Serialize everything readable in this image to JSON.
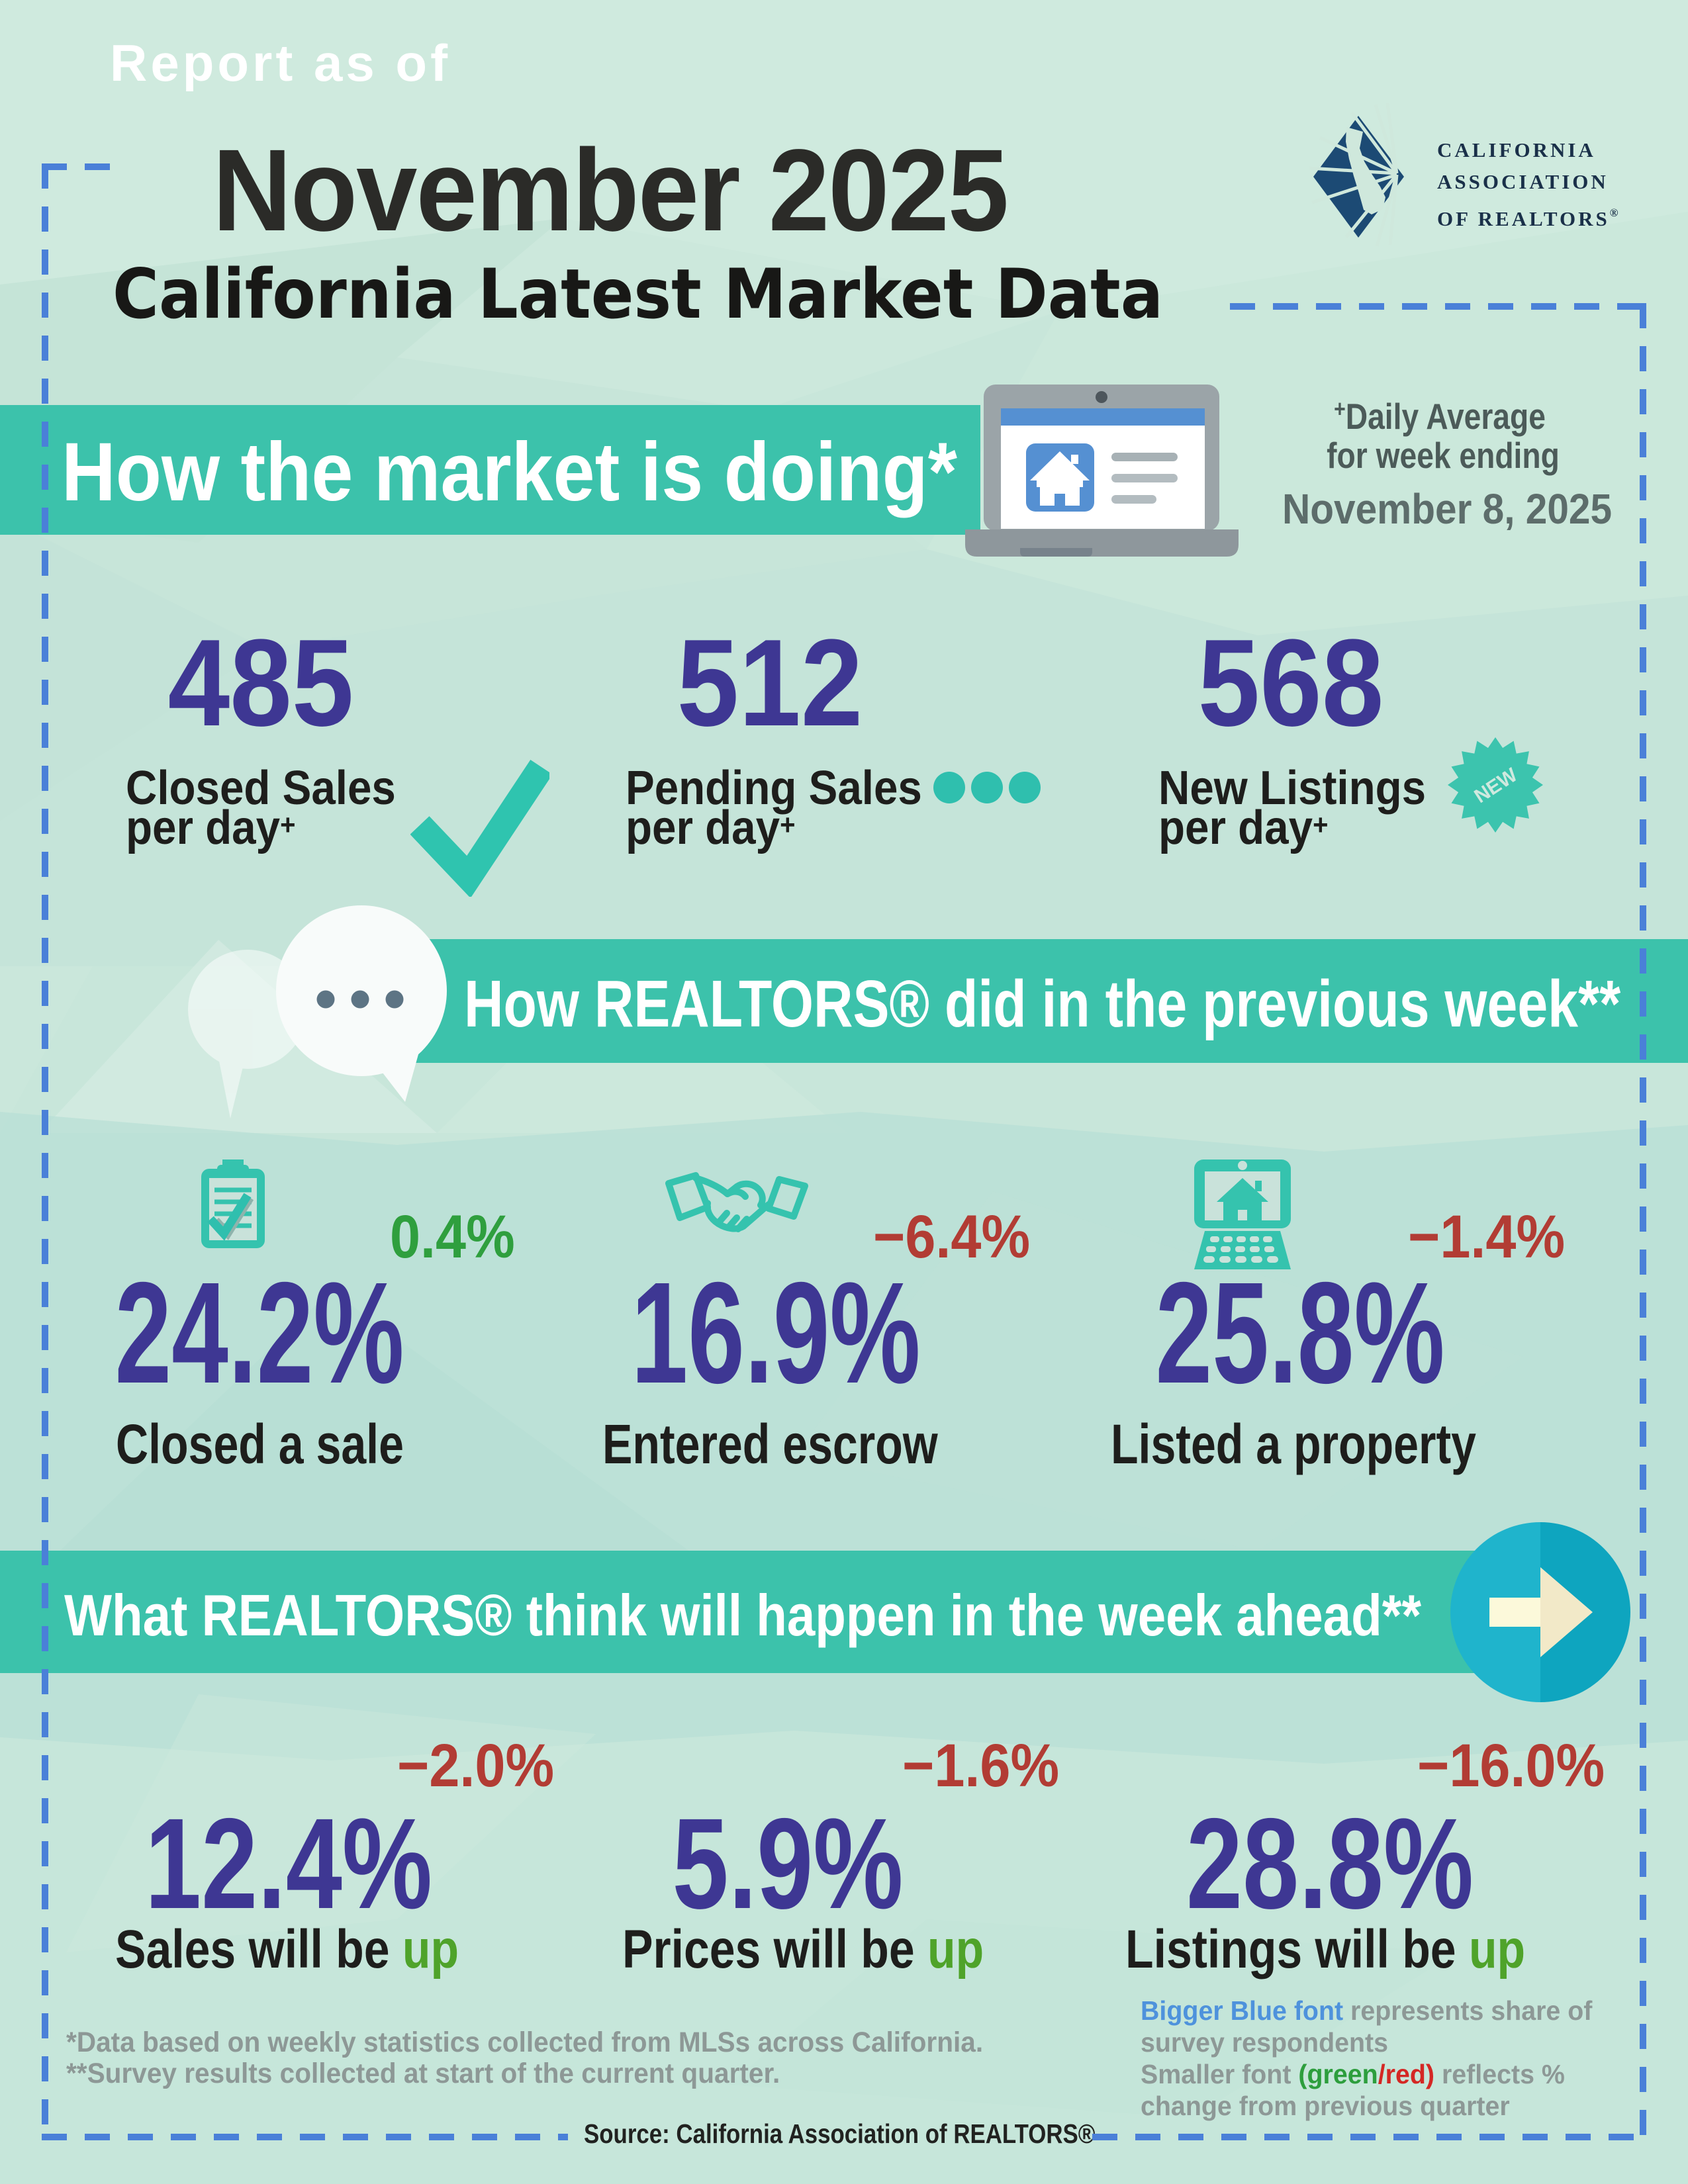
{
  "header": {
    "report_as_of": "Report as of",
    "month": "November 2025",
    "title": "California Latest Market Data"
  },
  "logo": {
    "line1": "CALIFORNIA",
    "line2": "ASSOCIATION",
    "line3": "OF REALTORS",
    "registered": "®"
  },
  "section_market": {
    "heading": "How the market is doing*",
    "note_plus": "+",
    "note_line1": "Daily Average",
    "note_line2": "for week ending",
    "note_date": "November 8, 2025",
    "stats": [
      {
        "value": "485",
        "label_line1": "Closed Sales",
        "label_line2": "per day",
        "label_sup": "+"
      },
      {
        "value": "512",
        "label_line1": "Pending Sales",
        "label_line2": "per day",
        "label_sup": "+"
      },
      {
        "value": "568",
        "label_line1": "New Listings",
        "label_line2": "per day",
        "label_sup": "+"
      }
    ],
    "new_badge": "NEW"
  },
  "section_previous": {
    "heading": "How REALTORS® did in the previous week**",
    "stats": [
      {
        "change": "0.4%",
        "value": "24.2%",
        "label": "Closed a sale",
        "icon": "clipboard-check-icon",
        "change_color": "#2f9f3e"
      },
      {
        "change": "−6.4%",
        "value": "16.9%",
        "label": "Entered escrow",
        "icon": "handshake-icon",
        "change_color": "#b23c34"
      },
      {
        "change": "−1.4%",
        "value": "25.8%",
        "label": "Listed a property",
        "icon": "laptop-house-icon",
        "change_color": "#b23c34"
      }
    ]
  },
  "section_ahead": {
    "heading": "What REALTORS® think will happen in the week ahead**",
    "stats": [
      {
        "change": "−2.0%",
        "value": "12.4%",
        "label_prefix": "Sales will be ",
        "label_up": "up"
      },
      {
        "change": "−1.6%",
        "value": "5.9%",
        "label_prefix": "Prices will be ",
        "label_up": "up"
      },
      {
        "change": "−16.0%",
        "value": "28.8%",
        "label_prefix": "Listings will be ",
        "label_up": "up"
      }
    ]
  },
  "footer": {
    "footnote1": "*Data based on weekly statistics collected from MLSs across California.",
    "footnote2": "**Survey results collected at start of the current quarter.",
    "legend_blue": "Bigger Blue font",
    "legend_after_blue": " represents share of",
    "legend_line2": "survey respondents",
    "legend_line3_start": "Smaller font ",
    "legend_green": "(green",
    "legend_slash": "/",
    "legend_red": "red)",
    "legend_line3_end": " reflects %",
    "legend_line4": "change from previous quarter",
    "source": "Source: California Association of REALTORS®"
  },
  "colors": {
    "background": "#c8e6da",
    "band_teal": "#3cc2ab",
    "stat_purple": "#3e3793",
    "positive_green": "#2f9f3e",
    "negative_red": "#b23c34",
    "up_green": "#4fa32a",
    "dash_blue": "#4a80d8",
    "logo_navy": "#1c4a74"
  }
}
